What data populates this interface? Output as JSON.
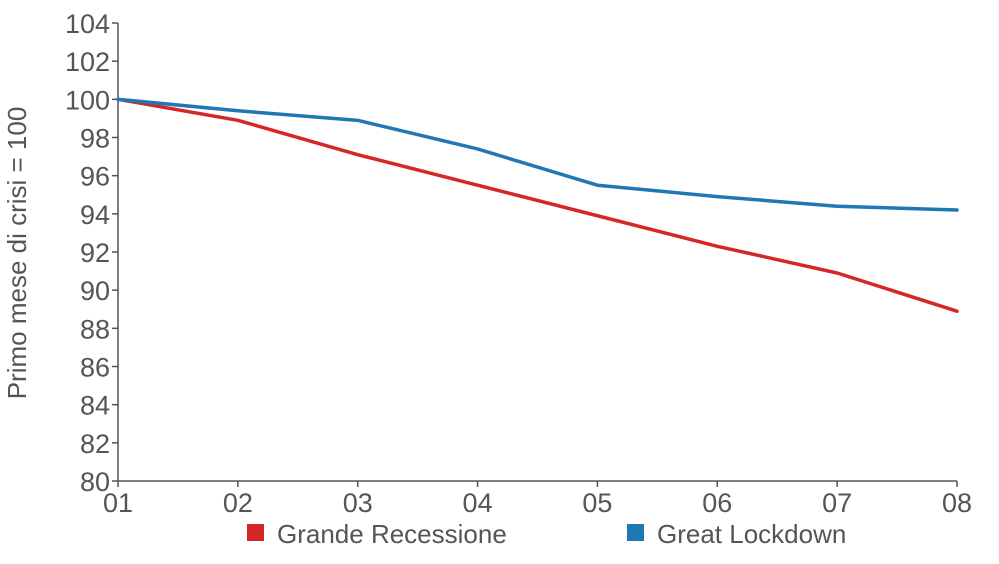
{
  "chart_data": {
    "type": "line",
    "title": "",
    "xlabel": "",
    "ylabel": "Primo mese di crisi = 100",
    "categories": [
      "01",
      "02",
      "03",
      "04",
      "05",
      "06",
      "07",
      "08"
    ],
    "ylim": [
      80,
      104
    ],
    "yticks": [
      "80",
      "82",
      "84",
      "86",
      "88",
      "90",
      "92",
      "94",
      "96",
      "98",
      "100",
      "102",
      "104"
    ],
    "grid": false,
    "legend_position": "bottom",
    "series": [
      {
        "name": "Grande Recessione",
        "color": "#d62728",
        "values": [
          100,
          98.9,
          97.1,
          95.5,
          93.9,
          92.3,
          90.9,
          88.9
        ]
      },
      {
        "name": "Great Lockdown",
        "color": "#1f77b4",
        "values": [
          100,
          99.4,
          98.9,
          97.4,
          95.5,
          94.9,
          94.4,
          94.2
        ]
      }
    ]
  }
}
